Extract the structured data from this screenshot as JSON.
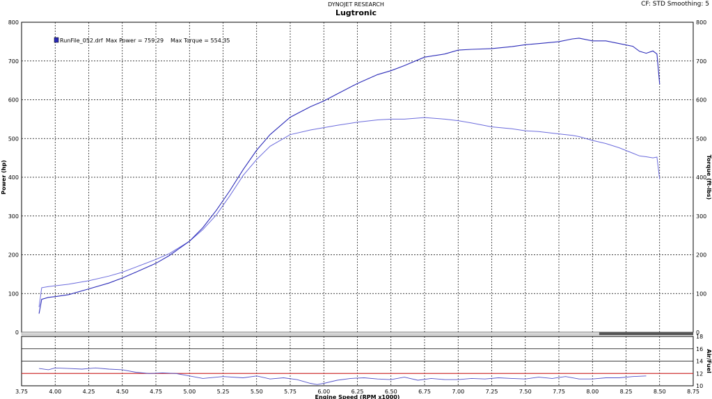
{
  "header": {
    "vendor": "DYNOJET RESEARCH",
    "title": "Lugtronic",
    "settings": "CF: STD   Smoothing: 5"
  },
  "legend": {
    "run": "RunFile_052.drf",
    "max_power": "Max Power = 759.29",
    "max_torque": "Max Torque = 554.35"
  },
  "colors": {
    "power": "#2a2ab8",
    "torque": "#6a6adc",
    "afr": "#5050c8",
    "afr_target": "#e02020",
    "grid": "#000000"
  },
  "chart_data": [
    {
      "type": "line",
      "xlabel": "Engine Speed (RPM x1000)",
      "ylabel": "Power (hp)",
      "y2label": "Torque (ft-lbs)",
      "xlim": [
        3.75,
        8.75
      ],
      "ylim": [
        0,
        800
      ],
      "y2lim": [
        0,
        800
      ],
      "xticks": [
        "3.75",
        "4.00",
        "4.25",
        "4.50",
        "4.75",
        "5.00",
        "5.25",
        "5.50",
        "5.75",
        "6.00",
        "6.25",
        "6.50",
        "6.75",
        "7.00",
        "7.25",
        "7.50",
        "7.75",
        "8.00",
        "8.25",
        "8.50",
        "8.75"
      ],
      "yticks": [
        "0",
        "100",
        "200",
        "300",
        "400",
        "500",
        "600",
        "700",
        "800"
      ],
      "grid": true,
      "legend_position": "top-left",
      "series": [
        {
          "name": "Power",
          "axis": "left",
          "x": [
            3.88,
            3.9,
            3.95,
            4.0,
            4.1,
            4.25,
            4.4,
            4.5,
            4.6,
            4.75,
            4.85,
            5.0,
            5.1,
            5.2,
            5.3,
            5.4,
            5.5,
            5.6,
            5.75,
            5.9,
            6.0,
            6.1,
            6.25,
            6.4,
            6.5,
            6.6,
            6.75,
            6.9,
            7.0,
            7.1,
            7.25,
            7.4,
            7.5,
            7.6,
            7.75,
            7.85,
            7.9,
            8.0,
            8.1,
            8.2,
            8.3,
            8.35,
            8.4,
            8.45,
            8.48,
            8.5
          ],
          "values": [
            48,
            85,
            90,
            92,
            97,
            112,
            127,
            140,
            155,
            178,
            198,
            235,
            270,
            315,
            365,
            420,
            470,
            510,
            555,
            582,
            597,
            615,
            642,
            665,
            675,
            688,
            710,
            718,
            728,
            730,
            732,
            737,
            742,
            745,
            750,
            757,
            759,
            752,
            752,
            745,
            738,
            725,
            720,
            726,
            718,
            640
          ]
        },
        {
          "name": "Torque",
          "axis": "right",
          "x": [
            3.88,
            3.9,
            3.95,
            4.0,
            4.1,
            4.25,
            4.4,
            4.5,
            4.6,
            4.75,
            4.85,
            5.0,
            5.1,
            5.2,
            5.3,
            5.4,
            5.5,
            5.6,
            5.75,
            5.9,
            6.0,
            6.1,
            6.25,
            6.4,
            6.5,
            6.6,
            6.75,
            6.9,
            7.0,
            7.1,
            7.25,
            7.4,
            7.5,
            7.6,
            7.75,
            7.85,
            7.9,
            8.0,
            8.1,
            8.2,
            8.3,
            8.35,
            8.4,
            8.45,
            8.48,
            8.5
          ],
          "values": [
            65,
            115,
            118,
            120,
            124,
            133,
            145,
            155,
            168,
            188,
            203,
            235,
            265,
            303,
            352,
            405,
            446,
            480,
            510,
            522,
            528,
            534,
            542,
            548,
            550,
            550,
            554,
            550,
            546,
            540,
            530,
            525,
            520,
            518,
            512,
            508,
            505,
            495,
            487,
            476,
            462,
            455,
            453,
            450,
            452,
            395
          ]
        }
      ]
    },
    {
      "type": "line",
      "ylabel": "Air/Fuel",
      "xlim": [
        3.75,
        8.75
      ],
      "ylim": [
        10,
        18
      ],
      "yticks": [
        "10",
        "12",
        "14",
        "16",
        "18"
      ],
      "target": 12.0,
      "series": [
        {
          "name": "Air/Fuel",
          "x": [
            3.88,
            3.95,
            4.0,
            4.1,
            4.2,
            4.3,
            4.4,
            4.5,
            4.6,
            4.7,
            4.8,
            4.9,
            5.0,
            5.1,
            5.25,
            5.4,
            5.5,
            5.6,
            5.7,
            5.8,
            5.9,
            5.95,
            6.0,
            6.1,
            6.2,
            6.3,
            6.4,
            6.5,
            6.6,
            6.7,
            6.8,
            6.9,
            7.0,
            7.1,
            7.2,
            7.3,
            7.4,
            7.5,
            7.6,
            7.7,
            7.8,
            7.9,
            8.0,
            8.1,
            8.2,
            8.3,
            8.4
          ],
          "values": [
            12.8,
            12.6,
            12.9,
            12.8,
            12.7,
            12.9,
            12.7,
            12.6,
            12.2,
            12.0,
            12.1,
            12.0,
            11.6,
            11.2,
            11.5,
            11.3,
            11.6,
            11.1,
            11.3,
            11.0,
            10.4,
            10.2,
            10.4,
            10.9,
            11.2,
            11.3,
            11.1,
            11.0,
            11.4,
            10.9,
            11.2,
            11.0,
            11.0,
            11.2,
            11.1,
            11.3,
            11.2,
            11.1,
            11.4,
            11.2,
            11.5,
            11.1,
            11.1,
            11.3,
            11.3,
            11.5,
            11.6
          ]
        }
      ]
    }
  ]
}
